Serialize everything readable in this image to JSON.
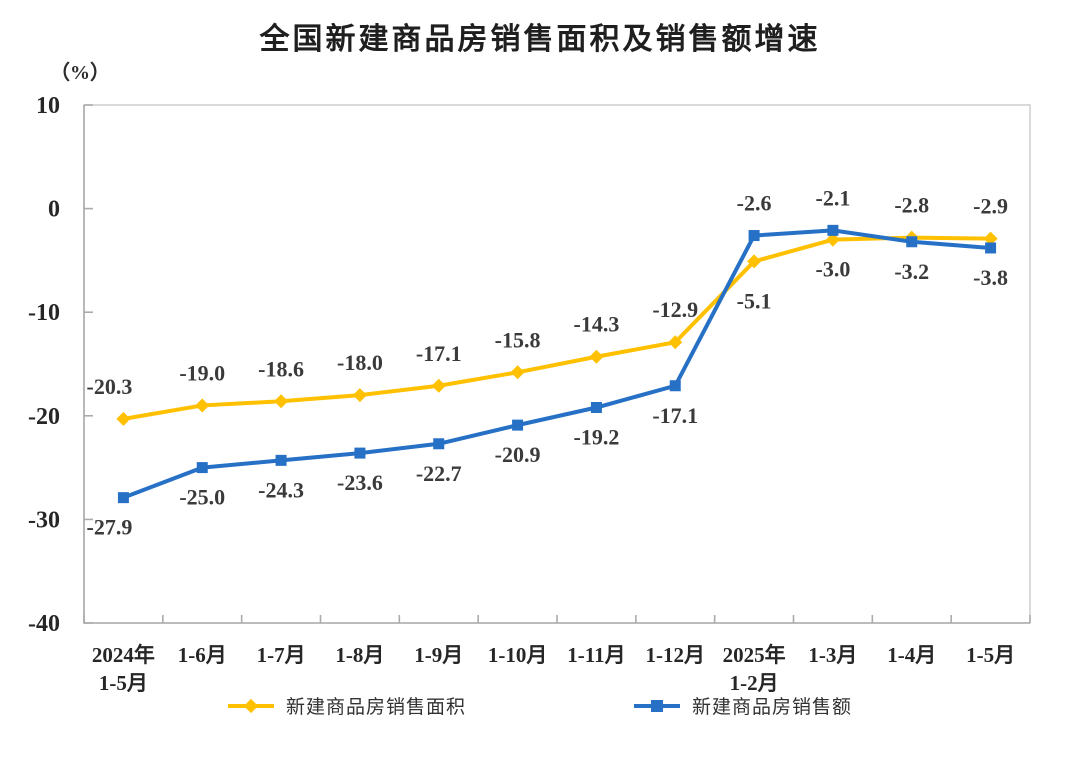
{
  "chart_data": {
    "type": "line",
    "title": "全国新建商品房销售面积及销售额增速",
    "ylabel": "（%）",
    "ylim": [
      -40,
      10
    ],
    "ytick_step": 10,
    "ytick_labels": [
      "10",
      "0",
      "-10",
      "-20",
      "-30",
      "-40"
    ],
    "grid": false,
    "legend_position": "bottom",
    "categories": [
      "2024年\n1-5月",
      "1-6月",
      "1-7月",
      "1-8月",
      "1-9月",
      "1-10月",
      "1-11月",
      "1-12月",
      "2025年\n1-2月",
      "1-3月",
      "1-4月",
      "1-5月"
    ],
    "series": [
      {
        "name": "新建商品房销售面积",
        "color": "#FFC000",
        "marker": "diamond",
        "values": [
          -20.3,
          -19.0,
          -18.6,
          -18.0,
          -17.1,
          -15.8,
          -14.3,
          -12.9,
          -5.1,
          -3.0,
          -2.8,
          -2.9
        ],
        "labels": [
          "-20.3",
          "-19.0",
          "-18.6",
          "-18.0",
          "-17.1",
          "-15.8",
          "-14.3",
          "-12.9",
          "-5.1",
          "-3.0",
          "-2.8",
          "-2.9"
        ],
        "label_side": [
          "above",
          "above",
          "above",
          "above",
          "above",
          "above",
          "above",
          "above",
          "below",
          "below",
          "above",
          "above"
        ]
      },
      {
        "name": "新建商品房销售额",
        "color": "#2670C6",
        "marker": "square",
        "values": [
          -27.9,
          -25.0,
          -24.3,
          -23.6,
          -22.7,
          -20.9,
          -19.2,
          -17.1,
          -2.6,
          -2.1,
          -3.2,
          -3.8
        ],
        "labels": [
          "-27.9",
          "-25.0",
          "-24.3",
          "-23.6",
          "-22.7",
          "-20.9",
          "-19.2",
          "-17.1",
          "-2.6",
          "-2.1",
          "-3.2",
          "-3.8"
        ],
        "label_side": [
          "below",
          "below",
          "below",
          "below",
          "below",
          "below",
          "below",
          "below",
          "above",
          "above",
          "below",
          "below"
        ]
      }
    ],
    "colors": {
      "axis": "#ABABAB",
      "plot_border": "#C6C6C6",
      "tick_label": "#262626",
      "data_label": "#3A3A3A"
    }
  }
}
